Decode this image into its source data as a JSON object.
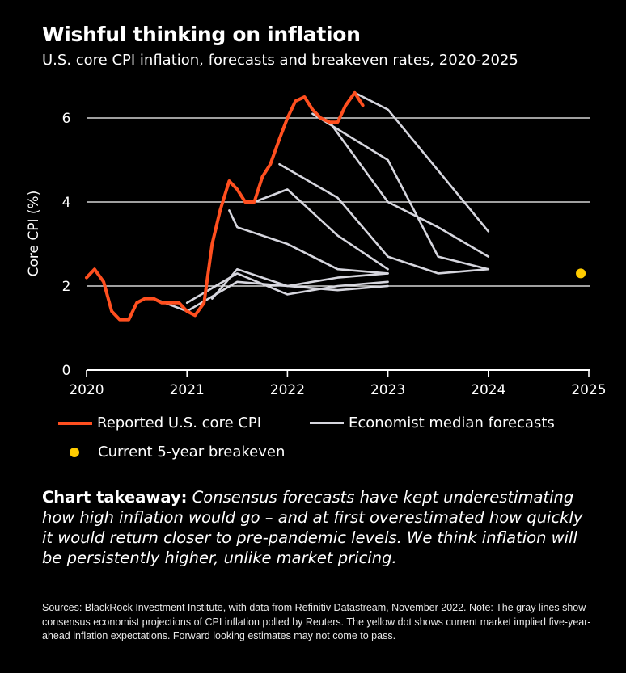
{
  "header": {
    "title": "Wishful thinking on inflation",
    "subtitle": "U.S. core CPI inflation, forecasts and breakeven rates, 2020-2025"
  },
  "legend": {
    "reported": "Reported U.S. core CPI",
    "forecasts": "Economist median forecasts",
    "breakeven": "Current 5-year breakeven"
  },
  "takeaway": {
    "lead": "Chart takeaway:",
    "body": " Consensus forecasts have kept underestimating how high inflation would go – and at first overestimated how quickly it would return closer to pre-pandemic levels. We think inflation will be persistently higher, unlike market pricing."
  },
  "sources": "Sources: BlackRock Investment Institute, with data from Refinitiv Datastream, November 2022. Note: The gray lines show consensus economist projections of CPI inflation polled by Reuters. The yellow dot shows current market implied five-year-ahead inflation expectations. Forward looking estimates may not come to pass.",
  "colors": {
    "reported": "#ff4f1f",
    "forecast": "#d6d6de",
    "breakeven": "#ffcc00",
    "grid": "#ffffff",
    "background": "#000000"
  },
  "chart_data": {
    "type": "line",
    "ylabel": "Core CPI (%)",
    "xlim": [
      2020,
      2025
    ],
    "ylim": [
      0,
      6.5
    ],
    "xticks": [
      2020,
      2021,
      2022,
      2023,
      2024,
      2025
    ],
    "yticks": [
      0,
      2,
      4,
      6
    ],
    "grid": true,
    "series": [
      {
        "role": "reported",
        "x": [
          2020.0,
          2020.08,
          2020.17,
          2020.25,
          2020.33,
          2020.42,
          2020.5,
          2020.58,
          2020.67,
          2020.75,
          2020.83,
          2020.92,
          2021.0,
          2021.08,
          2021.17,
          2021.25,
          2021.33,
          2021.42,
          2021.5,
          2021.58,
          2021.67,
          2021.75,
          2021.83,
          2021.92,
          2022.0,
          2022.08,
          2022.17,
          2022.25,
          2022.33,
          2022.42,
          2022.5,
          2022.58,
          2022.67,
          2022.75
        ],
        "y": [
          2.2,
          2.4,
          2.1,
          1.4,
          1.2,
          1.2,
          1.6,
          1.7,
          1.7,
          1.6,
          1.6,
          1.6,
          1.4,
          1.3,
          1.6,
          3.0,
          3.8,
          4.5,
          4.3,
          4.0,
          4.0,
          4.6,
          4.9,
          5.5,
          6.0,
          6.4,
          6.5,
          6.2,
          6.0,
          5.9,
          5.9,
          6.3,
          6.6,
          6.3
        ]
      },
      {
        "role": "forecast",
        "x": [
          2020.67,
          2021.0,
          2021.5,
          2022.0,
          2022.5,
          2023.0
        ],
        "y": [
          1.7,
          1.4,
          2.1,
          2.0,
          1.9,
          2.0
        ]
      },
      {
        "role": "forecast",
        "x": [
          2021.0,
          2021.5,
          2022.0,
          2022.5,
          2023.0
        ],
        "y": [
          1.6,
          2.3,
          1.8,
          2.0,
          2.1
        ]
      },
      {
        "role": "forecast",
        "x": [
          2021.25,
          2021.5,
          2022.0,
          2022.5,
          2023.0
        ],
        "y": [
          1.7,
          2.4,
          2.0,
          2.2,
          2.3
        ]
      },
      {
        "role": "forecast",
        "x": [
          2021.42,
          2021.5,
          2022.0,
          2022.5,
          2023.0
        ],
        "y": [
          3.8,
          3.4,
          3.0,
          2.4,
          2.3
        ]
      },
      {
        "role": "forecast",
        "x": [
          2021.67,
          2022.0,
          2022.5,
          2023.0
        ],
        "y": [
          4.0,
          4.3,
          3.2,
          2.4
        ]
      },
      {
        "role": "forecast",
        "x": [
          2021.92,
          2022.5,
          2023.0,
          2023.5,
          2024.0
        ],
        "y": [
          4.9,
          4.1,
          2.7,
          2.3,
          2.4
        ]
      },
      {
        "role": "forecast",
        "x": [
          2022.25,
          2023.0,
          2023.5,
          2024.0
        ],
        "y": [
          6.1,
          5.0,
          2.7,
          2.4
        ]
      },
      {
        "role": "forecast",
        "x": [
          2022.42,
          2023.0,
          2023.5,
          2024.0
        ],
        "y": [
          5.9,
          4.0,
          3.4,
          2.7
        ]
      },
      {
        "role": "forecast",
        "x": [
          2022.67,
          2023.0,
          2024.0
        ],
        "y": [
          6.6,
          6.2,
          3.3
        ]
      }
    ],
    "points": [
      {
        "role": "breakeven",
        "x": 2024.92,
        "y": 2.3
      }
    ]
  }
}
